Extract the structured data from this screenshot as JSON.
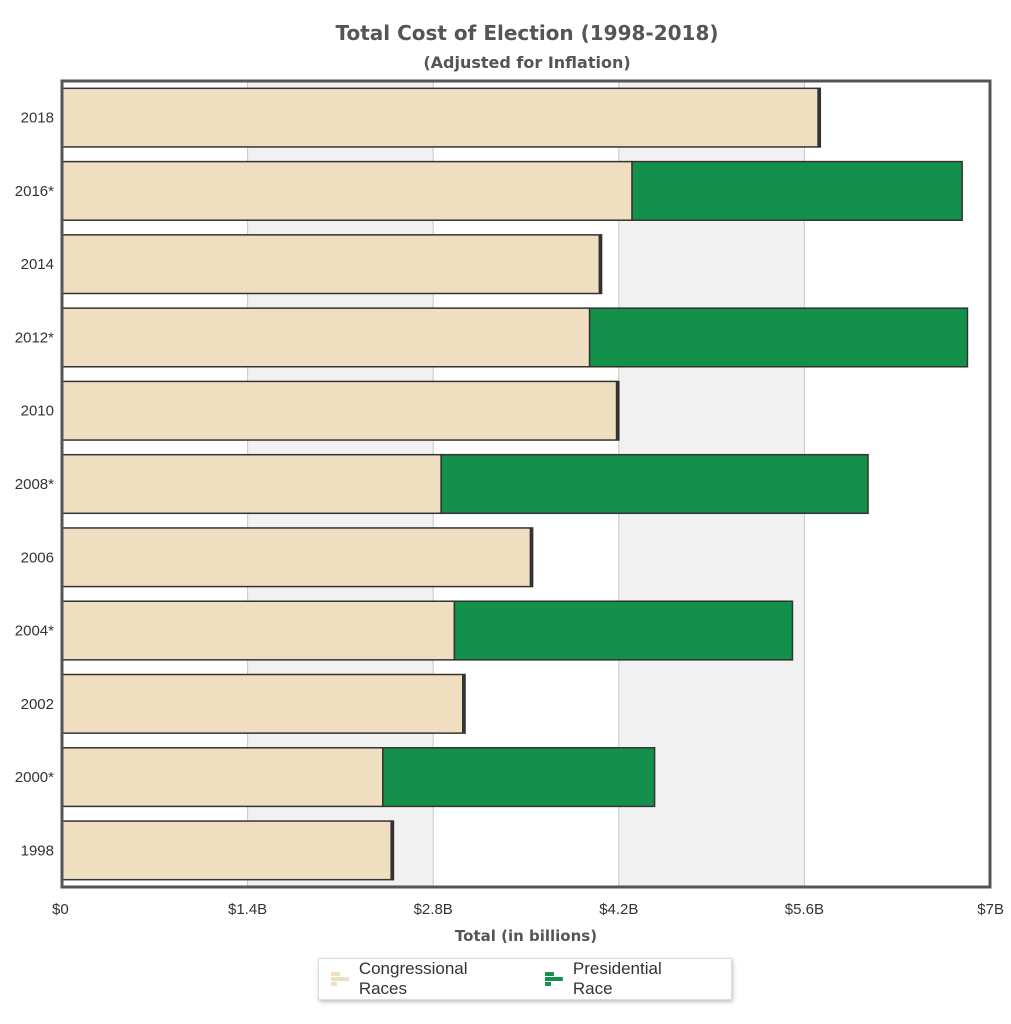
{
  "chart_data": {
    "type": "bar",
    "orientation": "horizontal",
    "stacked": true,
    "title": "Total Cost of Election (1998-2018)",
    "subtitle": "(Adjusted for Inflation)",
    "xlabel": "Total (in billions)",
    "ylabel": "",
    "xlim": [
      0,
      7
    ],
    "x_ticks": [
      0,
      1.4,
      2.8,
      4.2,
      5.6,
      7
    ],
    "x_tick_labels": [
      "$0",
      "$1.4B",
      "$2.8B",
      "$4.2B",
      "$5.6B",
      "$7B"
    ],
    "categories": [
      "2018",
      "2016*",
      "2014",
      "2012*",
      "2010",
      "2008*",
      "2006",
      "2004*",
      "2002",
      "2000*",
      "1998"
    ],
    "series": [
      {
        "name": "Congressional Races",
        "color": "#efdfc0",
        "values": [
          5.72,
          4.3,
          4.07,
          3.98,
          4.2,
          2.86,
          3.55,
          2.96,
          3.04,
          2.42,
          2.5
        ]
      },
      {
        "name": "Presidential Race",
        "color": "#13914a",
        "values": [
          0,
          2.49,
          0,
          2.85,
          0,
          3.22,
          0,
          2.55,
          0,
          2.05,
          0
        ]
      }
    ],
    "grid": "alternating vertical bands",
    "legend_position": "bottom"
  },
  "colors": {
    "band": "#f1f1f1",
    "gridline": "#c8c8c8",
    "frame": "#555555",
    "bar_stroke": "#333333"
  }
}
